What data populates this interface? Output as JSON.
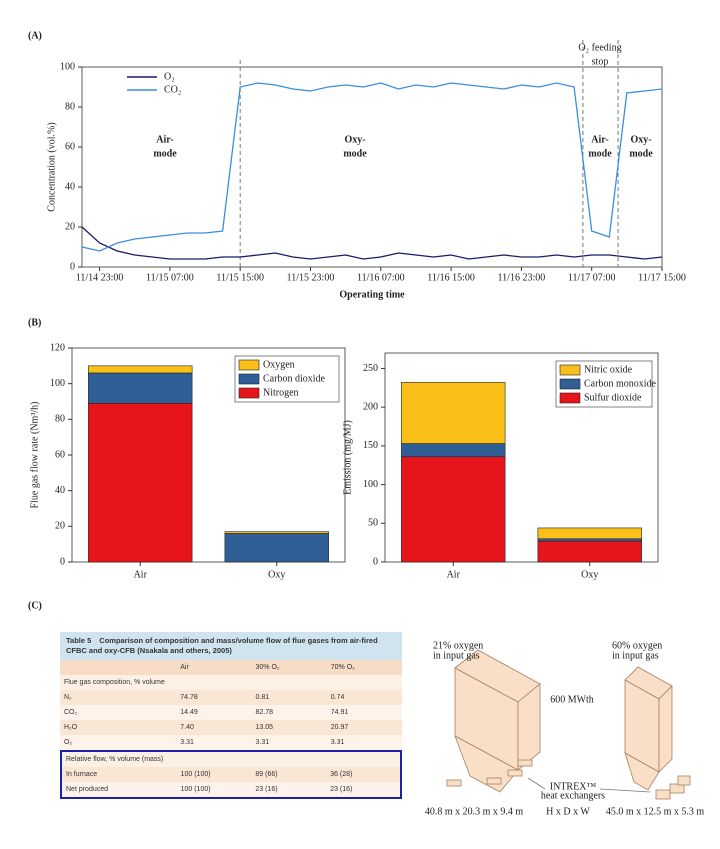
{
  "labels": [
    "(A)",
    "(B)",
    "(C)"
  ],
  "chart_data": [
    {
      "type": "line",
      "y_label": "Concentration (vol.%)",
      "x_label": "Operating time",
      "x": [
        "11/14 21:00",
        "11/14 23:00",
        "11/15 01:00",
        "11/15 03:00",
        "11/15 05:00",
        "11/15 07:00",
        "11/15 09:00",
        "11/15 11:00",
        "11/15 13:00",
        "11/15 15:00",
        "11/15 17:00",
        "11/15 19:00",
        "11/15 21:00",
        "11/15 23:00",
        "11/16 01:00",
        "11/16 03:00",
        "11/16 05:00",
        "11/16 07:00",
        "11/16 09:00",
        "11/16 11:00",
        "11/16 13:00",
        "11/16 15:00",
        "11/16 17:00",
        "11/16 19:00",
        "11/16 21:00",
        "11/16 23:00",
        "11/17 01:00",
        "11/17 03:00",
        "11/17 05:00",
        "11/17 07:00",
        "11/17 09:00",
        "11/17 11:00",
        "11/17 13:00",
        "11/17 15:00"
      ],
      "series": [
        {
          "name": "O₂",
          "color": "#1c1a6b",
          "values": [
            20,
            12,
            8,
            6,
            5,
            4,
            4,
            4,
            5,
            5,
            6,
            7,
            5,
            4,
            5,
            6,
            4,
            5,
            7,
            6,
            5,
            6,
            4,
            5,
            6,
            5,
            5,
            6,
            5,
            6,
            6,
            5,
            4,
            5
          ]
        },
        {
          "name": "CO₂",
          "color": "#3a8fdc",
          "values": [
            10,
            8,
            12,
            14,
            15,
            16,
            17,
            17,
            18,
            90,
            92,
            91,
            89,
            88,
            90,
            91,
            90,
            92,
            89,
            91,
            90,
            92,
            91,
            90,
            89,
            91,
            90,
            92,
            90,
            18,
            15,
            87,
            88,
            89
          ]
        }
      ],
      "xlim": [
        "11/14 21:00",
        "11/17 15:00"
      ],
      "xticks": [
        "11/14 23:00",
        "11/15 07:00",
        "11/15 15:00",
        "11/15 23:00",
        "11/16 07:00",
        "11/16 15:00",
        "11/16 23:00",
        "11/17 07:00",
        "11/17 15:00"
      ],
      "ylim": [
        0,
        100
      ],
      "yticks": [
        0,
        20,
        40,
        60,
        80,
        100
      ],
      "mode_switches": [
        "11/15 15:00",
        "11/17 06:00",
        "11/17 10:00"
      ],
      "annotations": [
        {
          "text": [
            "Air-",
            "mode"
          ],
          "color": "#111111"
        },
        {
          "text": [
            "Oxy-",
            "mode"
          ],
          "color": "#e0201c"
        },
        {
          "text": [
            "Air-",
            "mode"
          ],
          "color": "#111111"
        },
        {
          "text": [
            "Oxy-",
            "mode"
          ],
          "color": "#e0201c"
        },
        {
          "text": [
            "O₂ feeding",
            "stop"
          ],
          "color": "#8a8a8a"
        }
      ],
      "legend": "upper left"
    },
    {
      "type": "bar",
      "stacked": true,
      "y_label": "Flue gas flow rate (Nm³/h)",
      "categories": [
        "Air",
        "Oxy"
      ],
      "series": [
        {
          "name": "Nitrogen",
          "color": "#e8141b",
          "values": [
            89,
            0
          ]
        },
        {
          "name": "Carbon dioxide",
          "color": "#2f5f96",
          "values": [
            17,
            16
          ]
        },
        {
          "name": "Oxygen",
          "color": "#fbbf1a",
          "values": [
            4,
            1
          ]
        }
      ],
      "ylim": [
        0,
        120
      ],
      "yticks": [
        0,
        20,
        40,
        60,
        80,
        100,
        120
      ],
      "legend": "upper right"
    },
    {
      "type": "bar",
      "stacked": true,
      "y_label": "Emission (mg/MJ)",
      "categories": [
        "Air",
        "Oxy"
      ],
      "series": [
        {
          "name": "Sulfur dioxide",
          "color": "#e8141b",
          "values": [
            136,
            27
          ]
        },
        {
          "name": "Carbon monoxide",
          "color": "#2f5f96",
          "values": [
            17,
            3
          ]
        },
        {
          "name": "Nitric oxide",
          "color": "#fbbf1a",
          "values": [
            79,
            14
          ]
        }
      ],
      "ylim": [
        0,
        270
      ],
      "yticks": [
        0,
        50,
        100,
        150,
        200,
        250
      ],
      "legend": "upper right"
    }
  ],
  "table": {
    "caption": {
      "number": "Table 5",
      "title": "Comparison of composition and mass/volume flow of flue gases from air-fired CFBC and oxy-CFB (Nsakala and others, 2005)"
    },
    "columns": [
      "Air",
      "30% O₂",
      "70% O₂"
    ],
    "sections": [
      {
        "title": "Flue gas composition, % volume",
        "rows": [
          [
            "N₂",
            "74.78",
            "0.81",
            "0.74"
          ],
          [
            "CO₂",
            "14.49",
            "82.78",
            "74.91"
          ],
          [
            "H₂O",
            "7.40",
            "13.05",
            "20.97"
          ],
          [
            "O₂",
            "3.31",
            "3.31",
            "3.31"
          ]
        ]
      },
      {
        "title": "Relative flow, % volume (mass)",
        "rows": [
          [
            "In furnace",
            "100 (100)",
            "89 (66)",
            "36 (28)"
          ],
          [
            "Net produced",
            "100 (100)",
            "23 (16)",
            "23 (16)"
          ]
        ]
      }
    ]
  },
  "diagram": {
    "left_note": [
      "21% oxygen",
      "in input gas"
    ],
    "right_note": [
      "60% oxygen",
      "in input gas"
    ],
    "power": "600 MWth",
    "exchanger": [
      "INTREX™",
      "heat exchangers"
    ],
    "left_dims": "40.8 m x 20.3 m x 9.4 m",
    "dims_order": "H x D x W",
    "right_dims": "45.0 m x 12.5 m x 5.3 m"
  }
}
